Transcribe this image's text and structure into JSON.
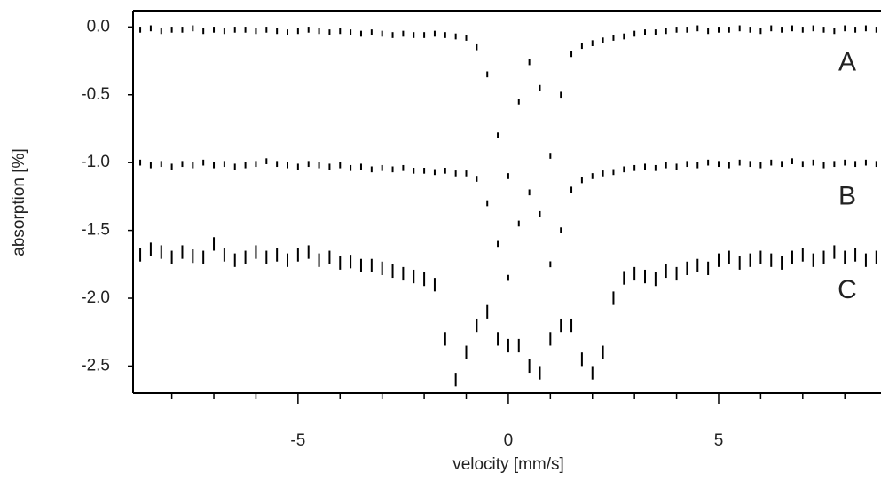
{
  "chart_data": {
    "type": "scatter",
    "x_label": "velocity [mm/s]",
    "y_label": "absorption [%]",
    "xlim": [
      -8.92,
      8.86
    ],
    "ylim": [
      -2.7,
      0.12
    ],
    "xticks": [
      -5,
      0,
      5
    ],
    "xminorticks": [
      -8,
      -7,
      -6,
      -4,
      -3,
      -2,
      -1,
      1,
      2,
      3,
      4,
      6,
      7,
      8
    ],
    "yticks": [
      {
        "value": 0,
        "label": "0.0"
      },
      -0.5,
      {
        "value": -1,
        "label": "-1.0"
      },
      -1.5,
      {
        "value": -2,
        "label": "-2.0"
      },
      -2.5
    ],
    "x": [
      -8.75,
      -8.5,
      -8.25,
      -8,
      -7.75,
      -7.5,
      -7.25,
      -7,
      -6.75,
      -6.5,
      -6.25,
      -6,
      -5.75,
      -5.5,
      -5.25,
      -5,
      -4.75,
      -4.5,
      -4.25,
      -4,
      -3.75,
      -3.5,
      -3.25,
      -3,
      -2.75,
      -2.5,
      -2.25,
      -2,
      -1.75,
      -1.5,
      -1.25,
      -1,
      -0.75,
      -0.5,
      -0.25,
      0,
      0.25,
      0.5,
      0.75,
      1,
      1.25,
      1.5,
      1.75,
      2,
      2.25,
      2.5,
      2.75,
      3,
      3.25,
      3.5,
      3.75,
      4,
      4.25,
      4.5,
      4.75,
      5,
      5.25,
      5.5,
      5.75,
      6,
      6.25,
      6.5,
      6.75,
      7,
      7.25,
      7.5,
      7.75,
      8,
      8.25,
      8.5,
      8.75
    ],
    "series": [
      {
        "name": "A",
        "color": "#000000",
        "error": 0.012,
        "values": [
          -0.02,
          -0.01,
          -0.03,
          -0.02,
          -0.02,
          -0.01,
          -0.03,
          -0.02,
          -0.03,
          -0.02,
          -0.02,
          -0.03,
          -0.02,
          -0.03,
          -0.04,
          -0.03,
          -0.02,
          -0.03,
          -0.04,
          -0.03,
          -0.04,
          -0.05,
          -0.04,
          -0.05,
          -0.06,
          -0.05,
          -0.06,
          -0.06,
          -0.05,
          -0.06,
          -0.07,
          -0.08,
          -0.15,
          -0.35,
          -0.8,
          -1.1,
          -0.55,
          -0.26,
          -0.45,
          -0.95,
          -0.5,
          -0.2,
          -0.14,
          -0.12,
          -0.1,
          -0.08,
          -0.07,
          -0.05,
          -0.04,
          -0.04,
          -0.03,
          -0.02,
          -0.02,
          -0.01,
          -0.03,
          -0.02,
          -0.02,
          -0.01,
          -0.02,
          -0.03,
          -0.01,
          -0.02,
          -0.01,
          -0.02,
          -0.01,
          -0.02,
          -0.03,
          -0.01,
          -0.02,
          -0.01,
          -0.02
        ]
      },
      {
        "name": "B",
        "color": "#000000",
        "error": 0.012,
        "values": [
          -1.0,
          -1.02,
          -1.01,
          -1.03,
          -1.01,
          -1.02,
          -1.0,
          -1.02,
          -1.01,
          -1.03,
          -1.02,
          -1.01,
          -0.99,
          -1.01,
          -1.02,
          -1.03,
          -1.01,
          -1.02,
          -1.03,
          -1.02,
          -1.04,
          -1.03,
          -1.05,
          -1.04,
          -1.05,
          -1.04,
          -1.06,
          -1.06,
          -1.07,
          -1.06,
          -1.08,
          -1.08,
          -1.12,
          -1.3,
          -1.6,
          -1.85,
          -1.45,
          -1.22,
          -1.38,
          -1.75,
          -1.5,
          -1.2,
          -1.13,
          -1.1,
          -1.08,
          -1.07,
          -1.05,
          -1.04,
          -1.03,
          -1.04,
          -1.02,
          -1.03,
          -1.01,
          -1.02,
          -1.0,
          -1.01,
          -1.02,
          -1.0,
          -1.01,
          -1.02,
          -1.0,
          -1.01,
          -0.99,
          -1.01,
          -1.0,
          -1.02,
          -1.01,
          -1.0,
          -1.01,
          -1.0,
          -1.01
        ]
      },
      {
        "name": "C",
        "color": "#000000",
        "error": 0.04,
        "values": [
          -1.68,
          -1.64,
          -1.66,
          -1.7,
          -1.66,
          -1.69,
          -1.7,
          -1.6,
          -1.68,
          -1.72,
          -1.7,
          -1.66,
          -1.7,
          -1.68,
          -1.72,
          -1.68,
          -1.66,
          -1.72,
          -1.7,
          -1.74,
          -1.73,
          -1.76,
          -1.76,
          -1.78,
          -1.8,
          -1.82,
          -1.84,
          -1.86,
          -1.9,
          -2.3,
          -2.6,
          -2.4,
          -2.2,
          -2.1,
          -2.3,
          -2.35,
          -2.35,
          -2.5,
          -2.55,
          -2.3,
          -2.2,
          -2.2,
          -2.45,
          -2.55,
          -2.4,
          -2.0,
          -1.85,
          -1.82,
          -1.84,
          -1.86,
          -1.8,
          -1.82,
          -1.78,
          -1.76,
          -1.78,
          -1.72,
          -1.7,
          -1.74,
          -1.72,
          -1.7,
          -1.72,
          -1.74,
          -1.7,
          -1.68,
          -1.72,
          -1.7,
          -1.66,
          -1.7,
          -1.68,
          -1.72,
          -1.7
        ]
      }
    ]
  }
}
